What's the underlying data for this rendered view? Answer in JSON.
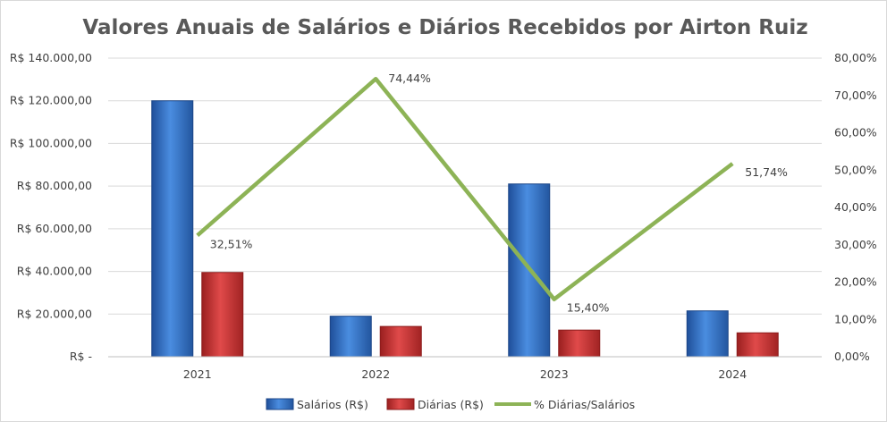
{
  "chart_data": {
    "type": "bar",
    "title": "Valores Anuais de Salários e Diários Recebidos por Airton Ruiz",
    "categories": [
      "2021",
      "2022",
      "2023",
      "2024"
    ],
    "series": [
      {
        "name": "Salários (R$)",
        "type": "bar",
        "axis": "left",
        "color": "#3f7fd0",
        "values": [
          120000,
          19000,
          81000,
          21500
        ]
      },
      {
        "name": "Diárias (R$)",
        "type": "bar",
        "axis": "left",
        "color": "#d03a3a",
        "values": [
          39500,
          14200,
          12500,
          11200
        ]
      },
      {
        "name": "% Diárias/Salários",
        "type": "line",
        "axis": "right",
        "color": "#8db356",
        "values": [
          32.51,
          74.44,
          15.4,
          51.74
        ],
        "data_labels": [
          "32,51%",
          "74,44%",
          "15,40%",
          "51,74%"
        ]
      }
    ],
    "y_left": {
      "ylim": [
        0,
        140000
      ],
      "ticks": [
        0,
        20000,
        40000,
        60000,
        80000,
        100000,
        120000,
        140000
      ],
      "tick_labels": [
        "R$ -",
        "R$ 20.000,00",
        "R$ 40.000,00",
        "R$ 60.000,00",
        "R$ 80.000,00",
        "R$ 100.000,00",
        "R$ 120.000,00",
        "R$ 140.000,00"
      ]
    },
    "y_right": {
      "ylim": [
        0,
        80
      ],
      "ticks": [
        0,
        10,
        20,
        30,
        40,
        50,
        60,
        70,
        80
      ],
      "tick_labels": [
        "0,00%",
        "10,00%",
        "20,00%",
        "30,00%",
        "40,00%",
        "50,00%",
        "60,00%",
        "70,00%",
        "80,00%"
      ]
    },
    "grid": true,
    "legend_position": "bottom"
  }
}
